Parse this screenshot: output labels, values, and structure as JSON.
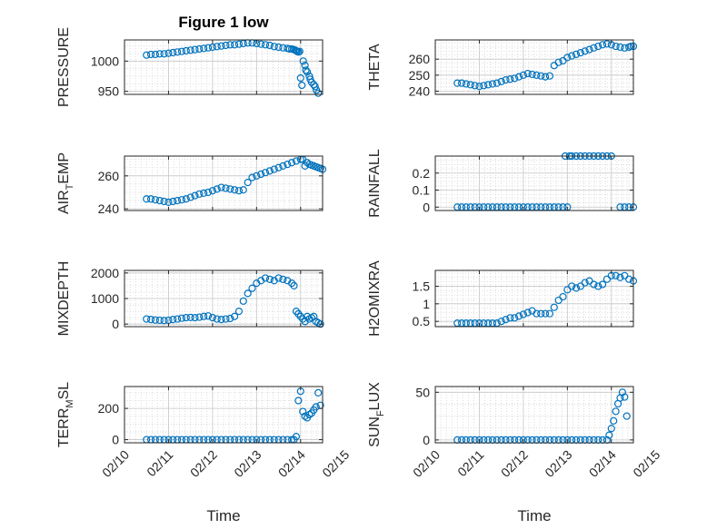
{
  "figure": {
    "title": "Figure 1 low",
    "xlabel": "Time",
    "marker_color": "#0072BD"
  },
  "chart_data": [
    {
      "type": "scatter",
      "ylabel_main": "PRESSURE",
      "ylabel_sub": "",
      "ylim": [
        945,
        1035
      ],
      "yticks": [
        950,
        1000
      ],
      "xlim": [
        "02/10",
        "02/14 12:00"
      ],
      "grid": "minor-dotted",
      "series": [
        {
          "x_days": [
            0.5,
            0.6,
            0.7,
            0.8,
            0.9,
            1.0,
            1.1,
            1.2,
            1.3,
            1.4,
            1.5,
            1.6,
            1.7,
            1.8,
            1.9,
            2.0,
            2.1,
            2.2,
            2.3,
            2.4,
            2.5,
            2.6,
            2.7,
            2.8,
            2.9,
            3.0,
            3.1,
            3.2,
            3.3,
            3.4,
            3.5,
            3.6,
            3.7,
            3.75,
            3.8,
            3.85,
            3.88,
            3.9,
            3.92,
            3.95,
            3.98,
            4.0,
            4.03,
            4.06,
            4.1,
            4.12,
            4.15,
            4.2,
            4.22,
            4.25,
            4.3,
            4.33,
            4.36,
            4.4
          ],
          "y": [
            1010,
            1011,
            1011,
            1012,
            1012,
            1013,
            1014,
            1015,
            1016,
            1017,
            1018,
            1019,
            1020,
            1021,
            1022,
            1023,
            1024,
            1025,
            1026,
            1027,
            1027,
            1028,
            1029,
            1030,
            1030,
            1029,
            1028,
            1027,
            1026,
            1024,
            1023,
            1022,
            1021,
            1020,
            1020,
            1019,
            1018,
            1017,
            1016,
            1015,
            1016,
            972,
            960,
            1000,
            993,
            985,
            982,
            975,
            970,
            965,
            961,
            958,
            952,
            947
          ]
        }
      ]
    },
    {
      "type": "scatter",
      "ylabel_main": "THETA",
      "ylabel_sub": "",
      "ylim": [
        238,
        272
      ],
      "yticks": [
        240,
        250,
        260
      ],
      "xlim": [
        "02/10",
        "02/14 12:00"
      ],
      "grid": "minor-dotted",
      "series": [
        {
          "x_days": [
            0.5,
            0.6,
            0.7,
            0.8,
            0.9,
            1.0,
            1.1,
            1.2,
            1.3,
            1.4,
            1.5,
            1.6,
            1.7,
            1.8,
            1.9,
            2.0,
            2.1,
            2.2,
            2.3,
            2.4,
            2.5,
            2.6,
            2.7,
            2.8,
            2.9,
            3.0,
            3.1,
            3.2,
            3.3,
            3.4,
            3.5,
            3.6,
            3.7,
            3.8,
            3.9,
            4.0,
            4.1,
            4.2,
            4.3,
            4.4,
            4.45,
            4.5
          ],
          "y": [
            245,
            245,
            244.5,
            244,
            243.5,
            243,
            243.5,
            244,
            244.5,
            245,
            246,
            247,
            247.5,
            248,
            249,
            250,
            251,
            250.5,
            250,
            249.5,
            249,
            249.5,
            256,
            258,
            259,
            261,
            262,
            263,
            264,
            265,
            266,
            267,
            268,
            269,
            269.5,
            269,
            268,
            267.5,
            267,
            267.5,
            268,
            268
          ]
        }
      ]
    },
    {
      "type": "scatter",
      "ylabel_main": "AIR",
      "ylabel_sub": "T",
      "ylabel_tail": "EMP",
      "ylim": [
        239,
        272
      ],
      "yticks": [
        240,
        260
      ],
      "xlim": [
        "02/10",
        "02/14 12:00"
      ],
      "grid": "minor-dotted",
      "series": [
        {
          "x_days": [
            0.5,
            0.6,
            0.7,
            0.8,
            0.9,
            1.0,
            1.1,
            1.2,
            1.3,
            1.4,
            1.5,
            1.6,
            1.7,
            1.8,
            1.9,
            2.0,
            2.1,
            2.2,
            2.3,
            2.4,
            2.5,
            2.6,
            2.7,
            2.8,
            2.9,
            3.0,
            3.1,
            3.2,
            3.3,
            3.4,
            3.5,
            3.6,
            3.7,
            3.8,
            3.9,
            4.0,
            4.05,
            4.1,
            4.15,
            4.2,
            4.25,
            4.3,
            4.35,
            4.4,
            4.45,
            4.5
          ],
          "y": [
            246,
            246,
            245.5,
            245,
            244.5,
            244,
            244.5,
            245,
            245.5,
            246,
            247,
            248,
            249,
            249.5,
            250,
            251,
            252,
            253,
            252.5,
            252,
            251.5,
            251,
            251.5,
            256,
            259,
            260,
            261,
            262,
            263,
            264,
            265,
            266,
            267,
            268,
            269,
            270,
            270,
            266,
            268,
            267,
            266.5,
            266,
            265.5,
            265,
            264.5,
            264
          ]
        }
      ]
    },
    {
      "type": "scatter",
      "ylabel_main": "RAINFALL",
      "ylabel_sub": "",
      "ylim": [
        -0.02,
        0.3
      ],
      "yticks": [
        0,
        0.1,
        0.2
      ],
      "xlim": [
        "02/10",
        "02/14 12:00"
      ],
      "grid": "minor-dotted",
      "series": [
        {
          "x_days": [
            0.5,
            0.6,
            0.7,
            0.8,
            0.9,
            1.0,
            1.1,
            1.2,
            1.3,
            1.4,
            1.5,
            1.6,
            1.7,
            1.8,
            1.9,
            2.0,
            2.1,
            2.2,
            2.3,
            2.4,
            2.5,
            2.6,
            2.7,
            2.8,
            2.9,
            2.95,
            3.0,
            3.05,
            3.1,
            3.2,
            3.3,
            3.4,
            3.5,
            3.6,
            3.7,
            3.8,
            3.9,
            4.0,
            4.2,
            4.3,
            4.4,
            4.5
          ],
          "y": [
            0,
            0,
            0,
            0,
            0,
            0,
            0,
            0,
            0,
            0,
            0,
            0,
            0,
            0,
            0,
            0,
            0,
            0,
            0,
            0,
            0,
            0,
            0,
            0,
            0,
            0.3,
            0,
            0.3,
            0.3,
            0.3,
            0.3,
            0.3,
            0.3,
            0.3,
            0.3,
            0.3,
            0.3,
            0.3,
            0,
            0,
            0,
            0
          ]
        }
      ]
    },
    {
      "type": "scatter",
      "ylabel_main": "MIXDEPTH",
      "ylabel_sub": "",
      "ylim": [
        -100,
        2100
      ],
      "yticks": [
        0,
        1000,
        2000
      ],
      "xlim": [
        "02/10",
        "02/14 12:00"
      ],
      "grid": "minor-dotted",
      "series": [
        {
          "x_days": [
            0.5,
            0.6,
            0.7,
            0.8,
            0.9,
            1.0,
            1.1,
            1.2,
            1.3,
            1.4,
            1.5,
            1.6,
            1.7,
            1.8,
            1.9,
            2.0,
            2.1,
            2.2,
            2.3,
            2.4,
            2.5,
            2.6,
            2.7,
            2.8,
            2.9,
            3.0,
            3.1,
            3.2,
            3.3,
            3.4,
            3.5,
            3.6,
            3.7,
            3.8,
            3.85,
            3.9,
            3.95,
            4.0,
            4.05,
            4.1,
            4.15,
            4.2,
            4.25,
            4.3,
            4.35,
            4.4,
            4.45
          ],
          "y": [
            200,
            180,
            160,
            150,
            140,
            150,
            180,
            200,
            230,
            250,
            260,
            250,
            270,
            300,
            320,
            250,
            200,
            180,
            200,
            220,
            300,
            500,
            900,
            1200,
            1400,
            1600,
            1700,
            1800,
            1750,
            1700,
            1800,
            1750,
            1700,
            1600,
            1500,
            500,
            400,
            300,
            200,
            100,
            300,
            200,
            250,
            300,
            100,
            50,
            0
          ]
        }
      ]
    },
    {
      "type": "scatter",
      "ylabel_main": "H2OMIXRA",
      "ylabel_sub": "",
      "ylim": [
        0.35,
        1.95
      ],
      "yticks": [
        0.5,
        1,
        1.5
      ],
      "xlim": [
        "02/10",
        "02/14 12:00"
      ],
      "grid": "minor-dotted",
      "series": [
        {
          "x_days": [
            0.5,
            0.6,
            0.7,
            0.8,
            0.9,
            1.0,
            1.1,
            1.2,
            1.3,
            1.4,
            1.5,
            1.6,
            1.7,
            1.8,
            1.9,
            2.0,
            2.1,
            2.2,
            2.3,
            2.4,
            2.5,
            2.6,
            2.7,
            2.8,
            2.9,
            3.0,
            3.1,
            3.2,
            3.3,
            3.4,
            3.5,
            3.6,
            3.7,
            3.8,
            3.9,
            4.0,
            4.1,
            4.2,
            4.3,
            4.4,
            4.5
          ],
          "y": [
            0.45,
            0.45,
            0.45,
            0.45,
            0.45,
            0.45,
            0.45,
            0.45,
            0.45,
            0.45,
            0.5,
            0.55,
            0.6,
            0.6,
            0.65,
            0.7,
            0.75,
            0.8,
            0.72,
            0.72,
            0.72,
            0.72,
            0.9,
            1.1,
            1.2,
            1.4,
            1.5,
            1.45,
            1.5,
            1.6,
            1.65,
            1.55,
            1.5,
            1.55,
            1.7,
            1.8,
            1.8,
            1.75,
            1.8,
            1.7,
            1.65
          ]
        }
      ]
    },
    {
      "type": "scatter",
      "ylabel_main": "TERR",
      "ylabel_sub": "M",
      "ylabel_tail": "SL",
      "ylim": [
        -20,
        340
      ],
      "yticks": [
        0,
        200
      ],
      "xlim": [
        "02/10",
        "02/14 12:00"
      ],
      "grid": "minor-dotted",
      "series": [
        {
          "x_days": [
            0.5,
            0.6,
            0.7,
            0.8,
            0.9,
            1.0,
            1.1,
            1.2,
            1.3,
            1.4,
            1.5,
            1.6,
            1.7,
            1.8,
            1.9,
            2.0,
            2.1,
            2.2,
            2.3,
            2.4,
            2.5,
            2.6,
            2.7,
            2.8,
            2.9,
            3.0,
            3.1,
            3.2,
            3.3,
            3.4,
            3.5,
            3.6,
            3.7,
            3.8,
            3.85,
            3.9,
            3.95,
            4.0,
            4.05,
            4.1,
            4.15,
            4.2,
            4.25,
            4.3,
            4.35,
            4.4,
            4.45
          ],
          "y": [
            0,
            0,
            0,
            0,
            0,
            0,
            0,
            0,
            0,
            0,
            0,
            0,
            0,
            0,
            0,
            0,
            0,
            0,
            0,
            0,
            0,
            0,
            0,
            0,
            0,
            0,
            0,
            0,
            0,
            0,
            0,
            0,
            0,
            0,
            0,
            20,
            250,
            310,
            180,
            150,
            140,
            160,
            170,
            190,
            210,
            300,
            220
          ]
        }
      ]
    },
    {
      "type": "scatter",
      "ylabel_main": "SUN",
      "ylabel_sub": "F",
      "ylabel_tail": "LUX",
      "ylim": [
        -3,
        56
      ],
      "yticks": [
        0,
        50
      ],
      "xlim": [
        "02/10",
        "02/14 12:00"
      ],
      "grid": "minor-dotted",
      "series": [
        {
          "x_days": [
            0.5,
            0.6,
            0.7,
            0.8,
            0.9,
            1.0,
            1.1,
            1.2,
            1.3,
            1.4,
            1.5,
            1.6,
            1.7,
            1.8,
            1.9,
            2.0,
            2.1,
            2.2,
            2.3,
            2.4,
            2.5,
            2.6,
            2.7,
            2.8,
            2.9,
            3.0,
            3.1,
            3.2,
            3.3,
            3.4,
            3.5,
            3.6,
            3.7,
            3.8,
            3.9,
            3.95,
            4.0,
            4.05,
            4.1,
            4.15,
            4.2,
            4.25,
            4.3,
            4.35
          ],
          "y": [
            0,
            0,
            0,
            0,
            0,
            0,
            0,
            0,
            0,
            0,
            0,
            0,
            0,
            0,
            0,
            0,
            0,
            0,
            0,
            0,
            0,
            0,
            0,
            0,
            0,
            0,
            0,
            0,
            0,
            0,
            0,
            0,
            0,
            0,
            0,
            5,
            12,
            20,
            30,
            38,
            44,
            50,
            45,
            25
          ]
        }
      ]
    }
  ],
  "xticks": [
    "02/10",
    "02/11",
    "02/12",
    "02/13",
    "02/14",
    "02/15"
  ]
}
